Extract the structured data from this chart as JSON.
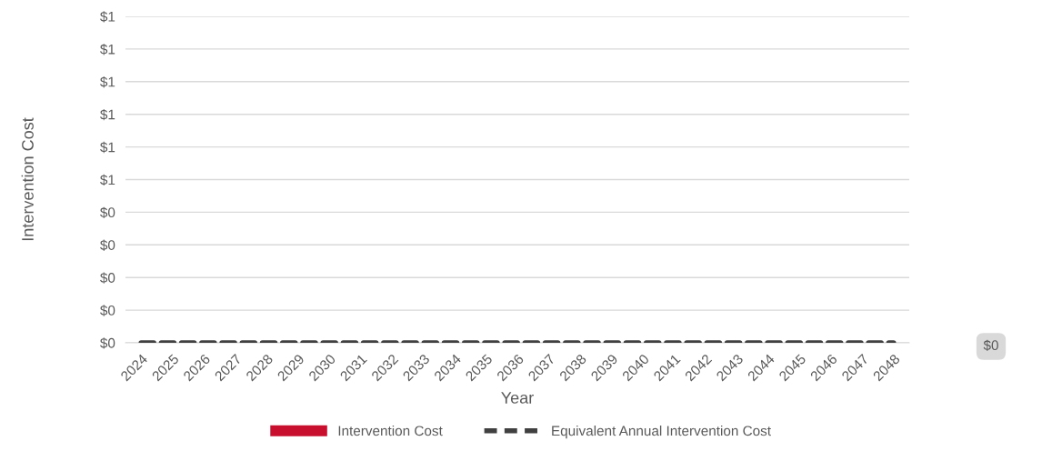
{
  "chart_data": {
    "type": "bar",
    "xlabel": "Year",
    "ylabel": "Intervention Cost",
    "categories": [
      "2024",
      "2025",
      "2026",
      "2027",
      "2028",
      "2029",
      "2030",
      "2031",
      "2032",
      "2033",
      "2034",
      "2035",
      "2036",
      "2037",
      "2038",
      "2039",
      "2040",
      "2041",
      "2042",
      "2043",
      "2044",
      "2045",
      "2046",
      "2047",
      "2048"
    ],
    "series": [
      {
        "name": "Intervention Cost",
        "color": "#c8102e",
        "values": [
          0,
          0,
          0,
          0,
          0,
          0,
          0,
          0,
          0,
          0,
          0,
          0,
          0,
          0,
          0,
          0,
          0,
          0,
          0,
          0,
          0,
          0,
          0,
          0,
          0
        ]
      },
      {
        "name": "Equivalent Annual Intervention Cost",
        "type": "line",
        "color": "#404040",
        "line_style": "dashed",
        "values": [
          0,
          0,
          0,
          0,
          0,
          0,
          0,
          0,
          0,
          0,
          0,
          0,
          0,
          0,
          0,
          0,
          0,
          0,
          0,
          0,
          0,
          0,
          0,
          0,
          0
        ]
      }
    ],
    "ylim": [
      0,
      1
    ],
    "yticks": [
      {
        "value": 0,
        "label": "$0"
      },
      {
        "value": 0.1,
        "label": "$0"
      },
      {
        "value": 0.2,
        "label": "$0"
      },
      {
        "value": 0.3,
        "label": "$0"
      },
      {
        "value": 0.4,
        "label": "$0"
      },
      {
        "value": 0.5,
        "label": "$1"
      },
      {
        "value": 0.6,
        "label": "$1"
      },
      {
        "value": 0.7,
        "label": "$1"
      },
      {
        "value": 0.8,
        "label": "$1"
      },
      {
        "value": 0.9,
        "label": "$1"
      },
      {
        "value": 1.0,
        "label": "$1"
      }
    ],
    "grid": "y",
    "legend": "bottom",
    "annotations": [
      "$0"
    ]
  }
}
